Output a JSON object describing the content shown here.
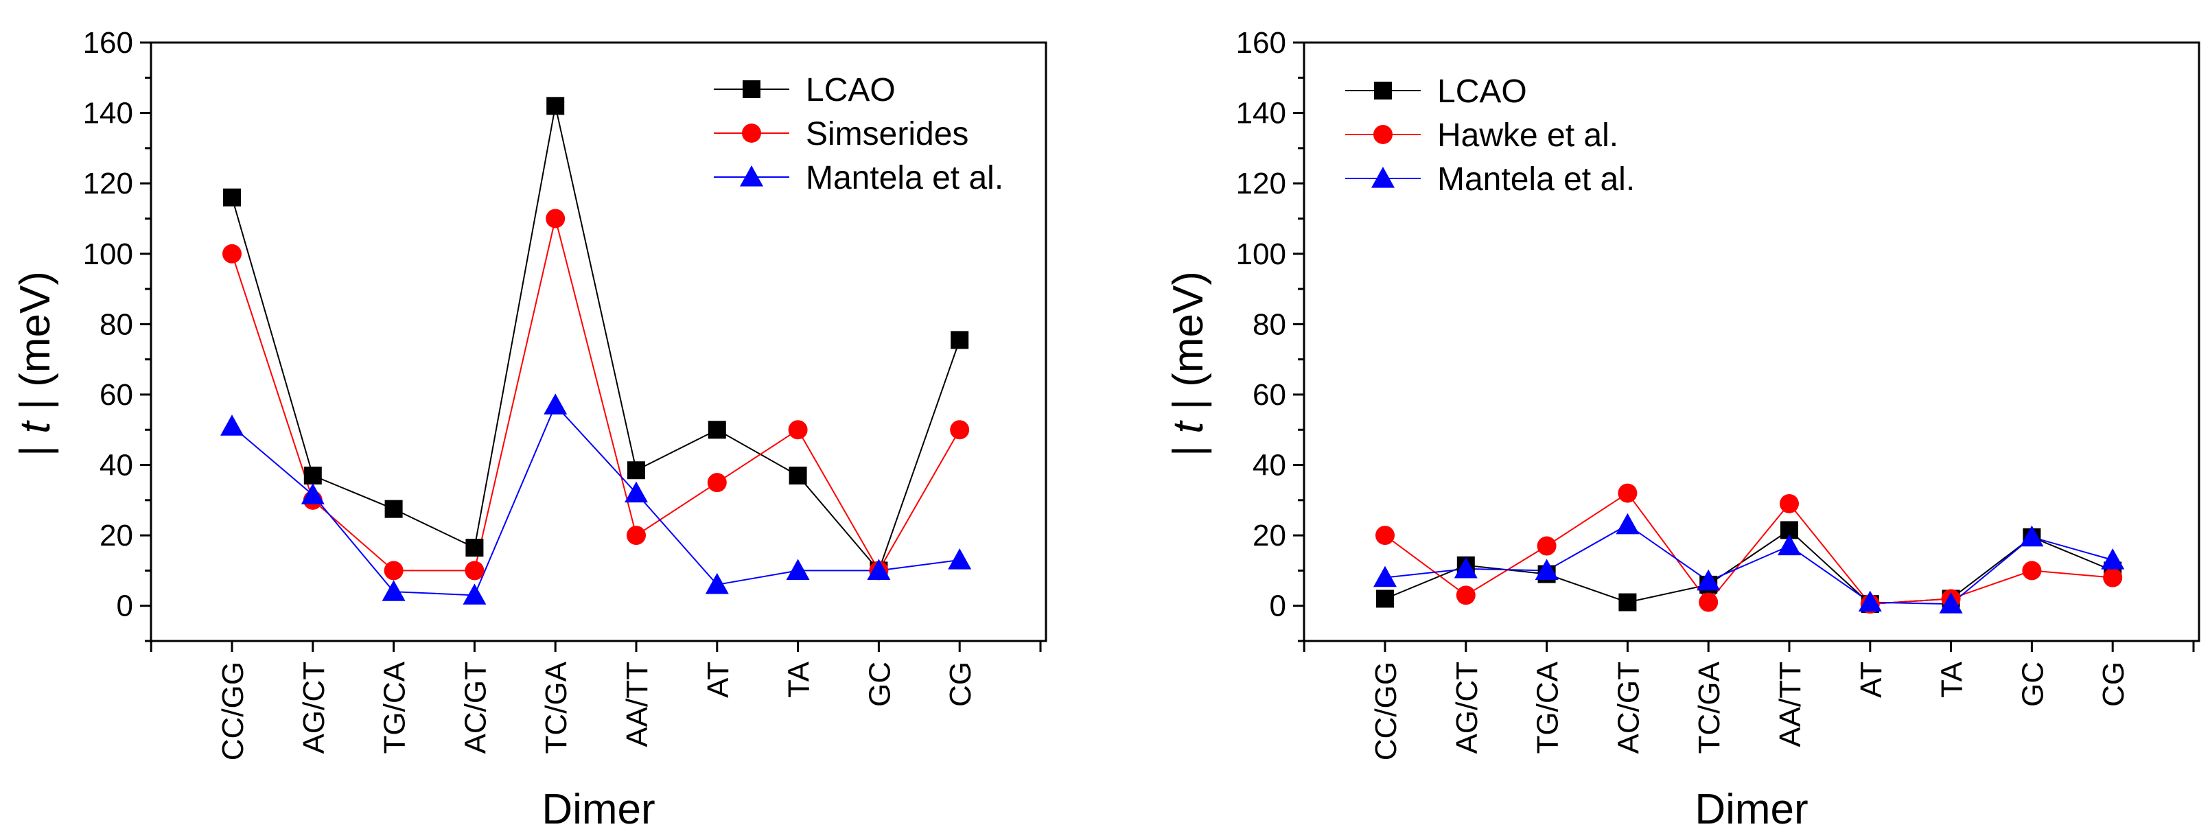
{
  "chart_data": [
    {
      "type": "line",
      "title": "",
      "xlabel": "Dimer",
      "ylabel": "| t | (meV)",
      "ylabel_parts": {
        "left": "| ",
        "italic": "t",
        "right": " | (meV)"
      },
      "ylim": [
        -10,
        160
      ],
      "yticks": [
        0,
        20,
        40,
        60,
        80,
        100,
        120,
        140,
        160
      ],
      "grid": false,
      "legend_position": "top-right",
      "categories": [
        "CC/GG",
        "AG/CT",
        "TG/CA",
        "AC/GT",
        "TC/GA",
        "AA/TT",
        "AT",
        "TA",
        "GC",
        "CG"
      ],
      "series": [
        {
          "name": "LCAO",
          "marker": "square",
          "color": "#000000",
          "values": [
            116,
            37,
            27.5,
            16.5,
            142,
            38.5,
            50,
            37,
            10,
            75.5
          ]
        },
        {
          "name": "Simserides",
          "marker": "circle",
          "color": "#ff0000",
          "values": [
            100,
            30,
            10,
            10,
            110,
            20,
            35,
            50,
            10,
            50
          ]
        },
        {
          "name": "Mantela et al.",
          "marker": "triangle",
          "color": "#0000ff",
          "values": [
            51,
            31.5,
            4,
            3,
            57,
            32,
            6,
            10,
            10,
            13
          ]
        }
      ]
    },
    {
      "type": "line",
      "title": "",
      "xlabel": "Dimer",
      "ylabel": "| t | (meV)",
      "ylabel_parts": {
        "left": "| ",
        "italic": "t",
        "right": " | (meV)"
      },
      "ylim": [
        -10,
        160
      ],
      "yticks": [
        0,
        20,
        40,
        60,
        80,
        100,
        120,
        140,
        160
      ],
      "grid": false,
      "legend_position": "top-left",
      "categories": [
        "CC/GG",
        "AG/CT",
        "TG/CA",
        "AC/GT",
        "TC/GA",
        "AA/TT",
        "AT",
        "TA",
        "GC",
        "CG"
      ],
      "series": [
        {
          "name": "LCAO",
          "marker": "square",
          "color": "#000000",
          "values": [
            2,
            11.5,
            9,
            1,
            6,
            21.5,
            0.5,
            2,
            19.5,
            10
          ]
        },
        {
          "name": "Hawke et al.",
          "marker": "circle",
          "color": "#ff0000",
          "values": [
            20,
            3,
            17,
            32,
            1,
            29,
            0.5,
            2,
            10,
            8
          ]
        },
        {
          "name": "Mantela et al.",
          "marker": "triangle",
          "color": "#0000ff",
          "values": [
            8,
            10.5,
            10,
            23,
            7,
            17,
            1,
            0.5,
            19.5,
            13
          ]
        }
      ]
    }
  ]
}
